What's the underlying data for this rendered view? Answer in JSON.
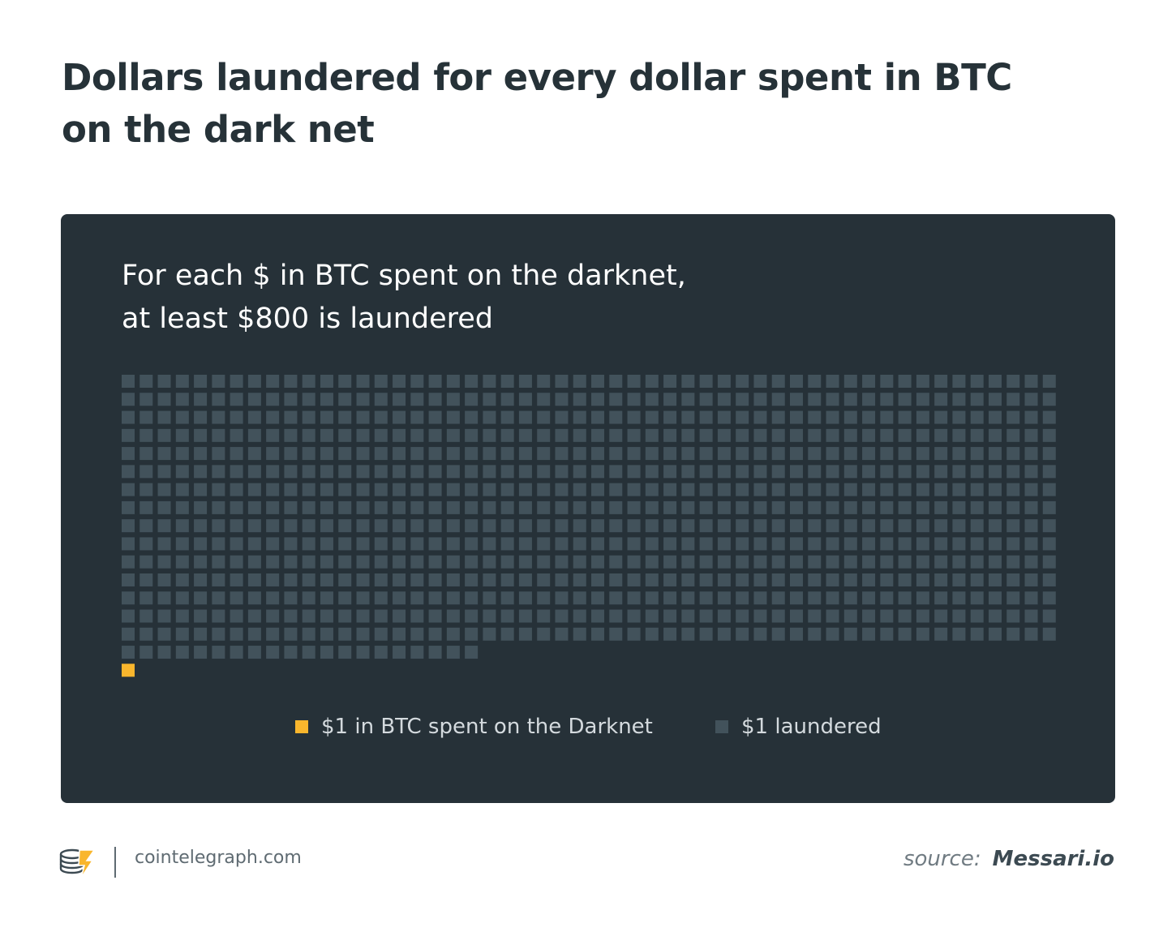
{
  "header": {
    "title_line1": "Dollars laundered for every dollar spent in BTC",
    "title_line2": "on the dark net"
  },
  "chart_data": {
    "type": "waffle",
    "subtitle_line1": "For each $ in BTC spent on the darknet,",
    "subtitle_line2": "at least $800 is laundered",
    "series": [
      {
        "name": "$1 in BTC spent on the Darknet",
        "value": 1,
        "color": "#f9b62d"
      },
      {
        "name": "$1 laundered",
        "value": 800,
        "color": "#42525b"
      }
    ],
    "grid_columns": 52,
    "grid_rows": 16
  },
  "colors": {
    "panel_background": "#263138",
    "title_text": "#263238",
    "accent_yellow": "#f9b62d",
    "square_gray": "#42525b"
  },
  "footer": {
    "logo_icon": "cointelegraph-logo-icon",
    "site": "cointelegraph.com",
    "source_label": "source:",
    "source_name": "Messari.io"
  }
}
